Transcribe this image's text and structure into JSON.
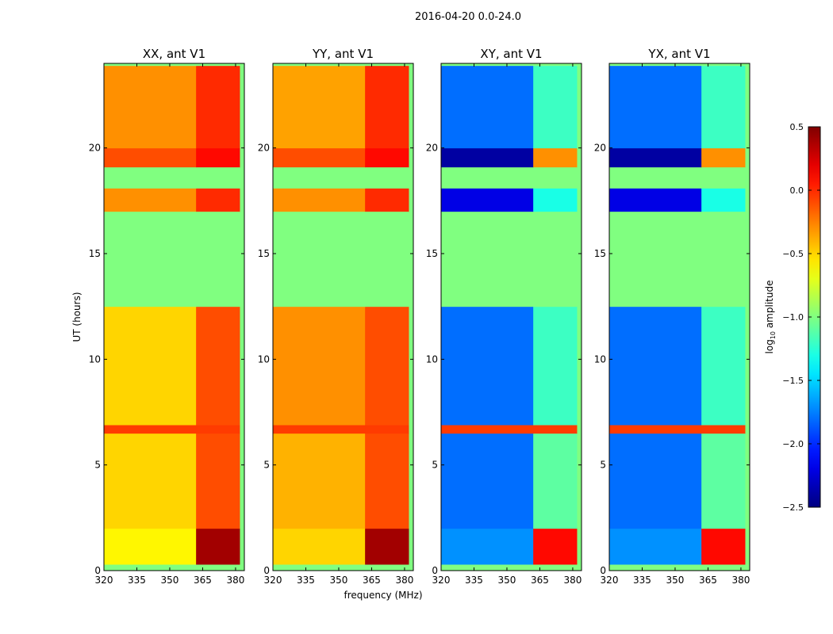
{
  "chart_data": {
    "type": "heatmap",
    "title": "2016-04-20 0.0-24.0",
    "xlabel": "frequency (MHz)",
    "ylabel": "UT (hours)",
    "xlim": [
      320,
      384
    ],
    "ylim": [
      0,
      24
    ],
    "xticks": [
      320,
      335,
      350,
      365,
      380
    ],
    "yticks": [
      0,
      5,
      10,
      15,
      20
    ],
    "colorbar": {
      "label_prefix": "log",
      "label_sub": "10",
      "label_suffix": " amplitude",
      "range": [
        -2.5,
        0.5
      ],
      "ticks": [
        "0.5",
        "0.0",
        "−0.5",
        "−1.0",
        "−1.5",
        "−2.0",
        "−2.5"
      ],
      "tick_values": [
        0.5,
        0.0,
        -0.5,
        -1.0,
        -1.5,
        -2.0,
        -2.5
      ],
      "colormap": "jet"
    },
    "flag_value": -1.0,
    "time_segments": [
      [
        0,
        0.3
      ],
      [
        0.3,
        2.0
      ],
      [
        2.0,
        6.5
      ],
      [
        6.5,
        6.9
      ],
      [
        6.9,
        12.5
      ],
      [
        12.5,
        17.0
      ],
      [
        17.0,
        18.1
      ],
      [
        18.1,
        19.1
      ],
      [
        19.1,
        20.0
      ],
      [
        20.0,
        23.9
      ],
      [
        23.9,
        24.0
      ]
    ],
    "freq_bands": [
      [
        320,
        362
      ],
      [
        362,
        382
      ],
      [
        382,
        384
      ]
    ],
    "panels": [
      {
        "title": "XX, ant V1",
        "values": [
          [
            -1.0,
            -1.0,
            -1.0
          ],
          [
            -0.6,
            0.4,
            -1.0
          ],
          [
            -0.5,
            -0.1,
            -1.0
          ],
          [
            -0.05,
            -0.05,
            -1.0
          ],
          [
            -0.5,
            -0.1,
            -1.0
          ],
          [
            -1.0,
            -1.0,
            -1.0
          ],
          [
            -0.3,
            0.0,
            -1.0
          ],
          [
            -1.0,
            -1.0,
            -1.0
          ],
          [
            -0.1,
            0.1,
            -1.0
          ],
          [
            -0.3,
            0.0,
            -1.0
          ],
          [
            -1.0,
            -1.0,
            -1.0
          ]
        ]
      },
      {
        "title": "YY, ant V1",
        "values": [
          [
            -1.0,
            -1.0,
            -1.0
          ],
          [
            -0.5,
            0.4,
            -1.0
          ],
          [
            -0.4,
            -0.1,
            -1.0
          ],
          [
            -0.05,
            -0.05,
            -1.0
          ],
          [
            -0.3,
            -0.1,
            -1.0
          ],
          [
            -1.0,
            -1.0,
            -1.0
          ],
          [
            -0.3,
            0.0,
            -1.0
          ],
          [
            -1.0,
            -1.0,
            -1.0
          ],
          [
            -0.1,
            0.1,
            -1.0
          ],
          [
            -0.35,
            0.0,
            -1.0
          ],
          [
            -1.0,
            -1.0,
            -1.0
          ]
        ]
      },
      {
        "title": "XY, ant V1",
        "values": [
          [
            -1.0,
            -1.0,
            -1.0
          ],
          [
            -1.7,
            0.1,
            -1.0
          ],
          [
            -1.8,
            -1.1,
            -1.0
          ],
          [
            -0.05,
            -0.05,
            -1.0
          ],
          [
            -1.8,
            -1.2,
            -1.0
          ],
          [
            -1.0,
            -1.0,
            -1.0
          ],
          [
            -2.2,
            -1.3,
            -1.0
          ],
          [
            -1.0,
            -1.0,
            -1.0
          ],
          [
            -2.4,
            -0.3,
            -1.0
          ],
          [
            -1.8,
            -1.2,
            -1.0
          ],
          [
            -1.0,
            -1.0,
            -1.0
          ]
        ]
      },
      {
        "title": "YX, ant V1",
        "values": [
          [
            -1.0,
            -1.0,
            -1.0
          ],
          [
            -1.7,
            0.1,
            -1.0
          ],
          [
            -1.8,
            -1.1,
            -1.0
          ],
          [
            -0.05,
            -0.05,
            -1.0
          ],
          [
            -1.8,
            -1.2,
            -1.0
          ],
          [
            -1.0,
            -1.0,
            -1.0
          ],
          [
            -2.2,
            -1.3,
            -1.0
          ],
          [
            -1.0,
            -1.0,
            -1.0
          ],
          [
            -2.4,
            -0.3,
            -1.0
          ],
          [
            -1.8,
            -1.2,
            -1.0
          ],
          [
            -1.0,
            -1.0,
            -1.0
          ]
        ]
      }
    ]
  }
}
